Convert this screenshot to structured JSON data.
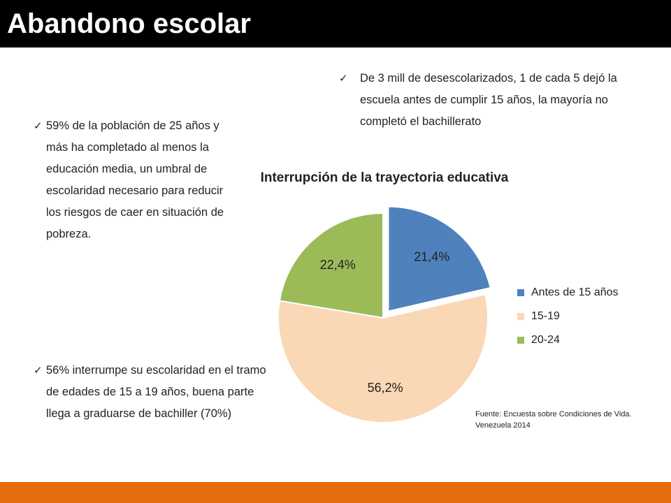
{
  "header": {
    "title": "Abandono escolar"
  },
  "bullets": {
    "check_glyph": "✓",
    "b1": "59% de la población de 25 años y más ha completado al menos la educación media, un umbral de escolaridad necesario para reducir los riesgos de caer en situación de pobreza.",
    "b2": " 56% interrumpe su escolaridad en el tramo de edades de 15 a 19 años, buena parte llega a graduarse de bachiller (70%)",
    "b3": " De 3 mill de desescolarizados,  1 de cada 5 dejó la escuela antes de cumplir 15 años, la mayoría no completó el bachillerato"
  },
  "chart_data": {
    "type": "pie",
    "title": "Interrupción de la trayectoria educativa",
    "labels": [
      "Antes de 15 años",
      "15-19",
      "20-24"
    ],
    "values": [
      21.4,
      56.2,
      22.4
    ],
    "value_labels": [
      "21,4%",
      "56,2%",
      "22,4%"
    ],
    "colors": [
      "#4f81bd",
      "#fad7b5",
      "#9bbb59"
    ],
    "exploded": [
      true,
      false,
      false
    ],
    "legend": "right"
  },
  "source": {
    "text": "Fuente: Encuesta sobre Condiciones de Vida. Venezuela 2014"
  },
  "colors": {
    "title_bar": "#000000",
    "bottom_bar": "#e46c0a"
  }
}
